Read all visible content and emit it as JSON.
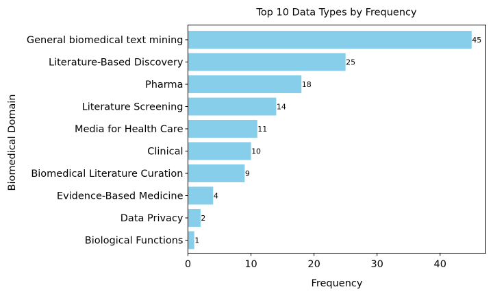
{
  "chart_data": {
    "type": "bar",
    "orientation": "horizontal",
    "title": "Top 10 Data Types by Frequency",
    "xlabel": "Frequency",
    "ylabel": "Biomedical Domain",
    "categories": [
      "General biomedical text mining",
      "Literature-Based Discovery",
      "Pharma",
      "Literature Screening",
      "Media for Health Care",
      "Clinical",
      "Biomedical Literature Curation",
      "Evidence-Based Medicine",
      "Data Privacy",
      "Biological Functions"
    ],
    "values": [
      45,
      25,
      18,
      14,
      11,
      10,
      9,
      4,
      2,
      1
    ],
    "xlim": [
      0,
      47.25
    ],
    "xticks": [
      0,
      10,
      20,
      30,
      40
    ],
    "bar_color": "#87CEEB",
    "grid": false,
    "legend": "none"
  }
}
